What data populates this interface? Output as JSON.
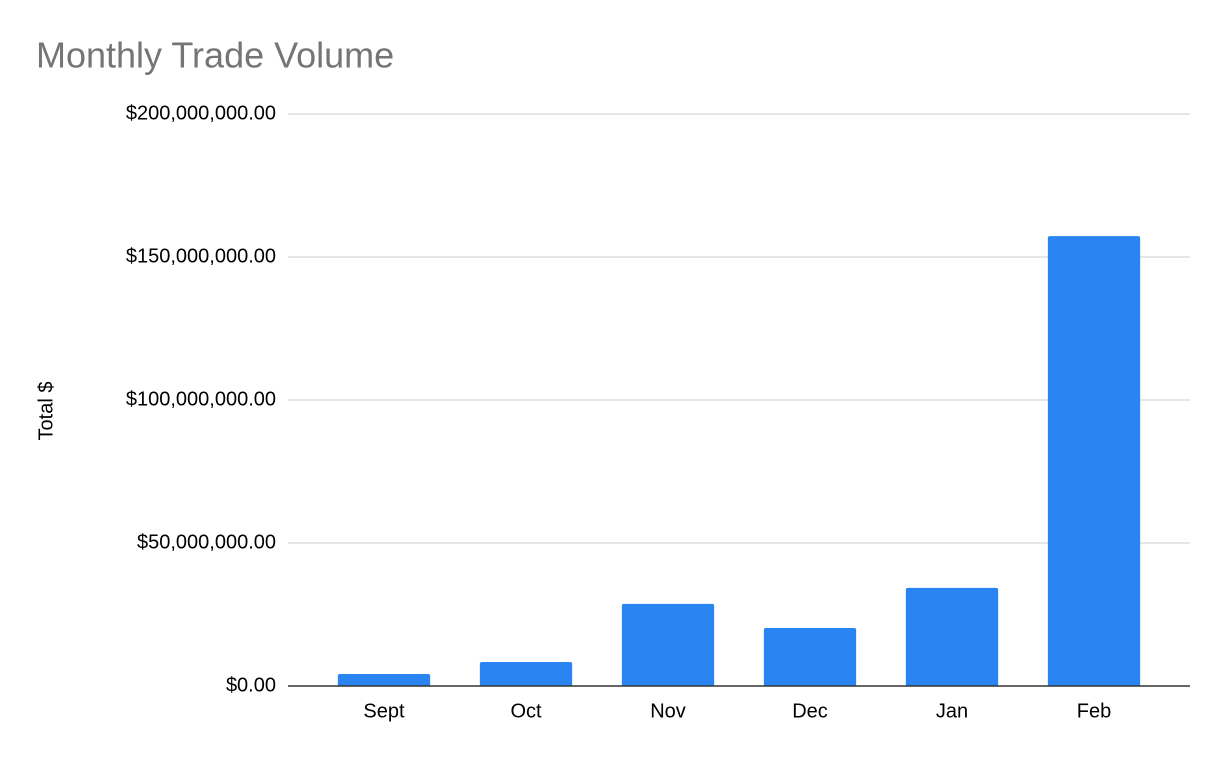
{
  "chart_data": {
    "type": "bar",
    "title": "Monthly Trade Volume",
    "y_label": "Total $",
    "categories": [
      "Sept",
      "Oct",
      "Nov",
      "Dec",
      "Jan",
      "Feb"
    ],
    "values": [
      4200000,
      8400000,
      28700000,
      20300000,
      34300000,
      157300000
    ],
    "color": "#2a84f2",
    "ylim": [
      0,
      200000000
    ],
    "yticks": [
      {
        "value": 0,
        "label": "$0.00"
      },
      {
        "value": 50000000,
        "label": "$50,000,000.00"
      },
      {
        "value": 100000000,
        "label": "$100,000,000.00"
      },
      {
        "value": 150000000,
        "label": "$150,000,000.00"
      },
      {
        "value": 200000000,
        "label": "$200,000,000.00"
      }
    ],
    "grid": true
  }
}
